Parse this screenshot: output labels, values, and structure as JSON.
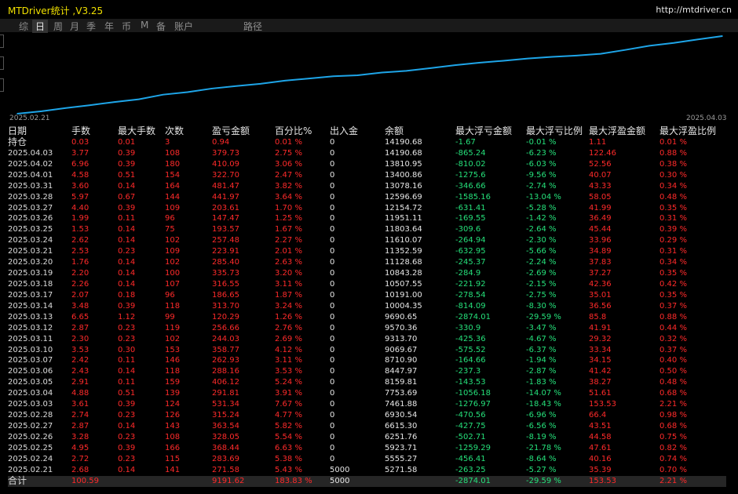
{
  "app": {
    "title": "MTDriver统计 ,V3.25",
    "url": "http://mtdriver.cn"
  },
  "tabs": [
    {
      "label": "综",
      "active": false
    },
    {
      "label": "日",
      "active": true
    },
    {
      "label": "周",
      "active": false
    },
    {
      "label": "月",
      "active": false
    },
    {
      "label": "季",
      "active": false
    },
    {
      "label": "年",
      "active": false
    },
    {
      "label": "币",
      "active": false
    },
    {
      "label": "M",
      "active": false
    },
    {
      "label": "备",
      "active": false
    },
    {
      "label": "账户",
      "active": false
    },
    {
      "label": "路径",
      "active": false
    }
  ],
  "chart_data": {
    "type": "line",
    "x": [
      "2025.02.21",
      "2025.02.24",
      "2025.02.25",
      "2025.02.26",
      "2025.02.27",
      "2025.02.28",
      "2025.03.03",
      "2025.03.04",
      "2025.03.05",
      "2025.03.06",
      "2025.03.07",
      "2025.03.10",
      "2025.03.11",
      "2025.03.12",
      "2025.03.13",
      "2025.03.14",
      "2025.03.17",
      "2025.03.18",
      "2025.03.19",
      "2025.03.20",
      "2025.03.21",
      "2025.03.24",
      "2025.03.25",
      "2025.03.26",
      "2025.03.27",
      "2025.03.28",
      "2025.03.31",
      "2025.04.01",
      "2025.04.02",
      "2025.04.03"
    ],
    "values": [
      5271.58,
      5555.27,
      5923.71,
      6251.76,
      6615.3,
      6930.54,
      7461.88,
      7753.69,
      8159.81,
      8447.97,
      8710.9,
      9069.67,
      9313.7,
      9570.36,
      9690.65,
      10004.35,
      10191.0,
      10507.55,
      10843.28,
      11128.68,
      11352.59,
      11610.07,
      11803.64,
      11951.11,
      12154.72,
      12596.69,
      13078.16,
      13400.86,
      13810.95,
      14190.68
    ],
    "xlabels": [
      "2025.02.21",
      "2025.04.03"
    ],
    "color": "#1ea5e8"
  },
  "table": {
    "headers": [
      "日期",
      "手数",
      "最大手数",
      "次数",
      "盈亏金额",
      "百分比%",
      "出入金",
      "余额",
      "最大浮亏金额",
      "最大浮亏比例",
      "最大浮盈金额",
      "最大浮盈比例"
    ],
    "rows": [
      [
        "持仓",
        "0.03",
        "0.01",
        "3",
        "0.94",
        "0.01 %",
        "0",
        "14190.68",
        "-1.67",
        "-0.01 %",
        "1.11",
        "0.01 %"
      ],
      [
        "2025.04.03",
        "3.77",
        "0.39",
        "108",
        "379.73",
        "2.75 %",
        "0",
        "14190.68",
        "-865.24",
        "-6.23 %",
        "122.46",
        "0.88 %"
      ],
      [
        "2025.04.02",
        "6.96",
        "0.39",
        "180",
        "410.09",
        "3.06 %",
        "0",
        "13810.95",
        "-810.02",
        "-6.03 %",
        "52.56",
        "0.38 %"
      ],
      [
        "2025.04.01",
        "4.58",
        "0.51",
        "154",
        "322.70",
        "2.47 %",
        "0",
        "13400.86",
        "-1275.6",
        "-9.56 %",
        "40.07",
        "0.30 %"
      ],
      [
        "2025.03.31",
        "3.60",
        "0.14",
        "164",
        "481.47",
        "3.82 %",
        "0",
        "13078.16",
        "-346.66",
        "-2.74 %",
        "43.33",
        "0.34 %"
      ],
      [
        "2025.03.28",
        "5.97",
        "0.67",
        "144",
        "441.97",
        "3.64 %",
        "0",
        "12596.69",
        "-1585.16",
        "-13.04 %",
        "58.05",
        "0.48 %"
      ],
      [
        "2025.03.27",
        "4.40",
        "0.39",
        "109",
        "203.61",
        "1.70 %",
        "0",
        "12154.72",
        "-631.41",
        "-5.28 %",
        "41.99",
        "0.35 %"
      ],
      [
        "2025.03.26",
        "1.99",
        "0.11",
        "96",
        "147.47",
        "1.25 %",
        "0",
        "11951.11",
        "-169.55",
        "-1.42 %",
        "36.49",
        "0.31 %"
      ],
      [
        "2025.03.25",
        "1.53",
        "0.14",
        "75",
        "193.57",
        "1.67 %",
        "0",
        "11803.64",
        "-309.6",
        "-2.64 %",
        "45.44",
        "0.39 %"
      ],
      [
        "2025.03.24",
        "2.62",
        "0.14",
        "102",
        "257.48",
        "2.27 %",
        "0",
        "11610.07",
        "-264.94",
        "-2.30 %",
        "33.96",
        "0.29 %"
      ],
      [
        "2025.03.21",
        "2.53",
        "0.23",
        "109",
        "223.91",
        "2.01 %",
        "0",
        "11352.59",
        "-632.95",
        "-5.66 %",
        "34.89",
        "0.31 %"
      ],
      [
        "2025.03.20",
        "1.76",
        "0.14",
        "102",
        "285.40",
        "2.63 %",
        "0",
        "11128.68",
        "-245.37",
        "-2.24 %",
        "37.83",
        "0.34 %"
      ],
      [
        "2025.03.19",
        "2.20",
        "0.14",
        "100",
        "335.73",
        "3.20 %",
        "0",
        "10843.28",
        "-284.9",
        "-2.69 %",
        "37.27",
        "0.35 %"
      ],
      [
        "2025.03.18",
        "2.26",
        "0.14",
        "107",
        "316.55",
        "3.11 %",
        "0",
        "10507.55",
        "-221.92",
        "-2.15 %",
        "42.36",
        "0.42 %"
      ],
      [
        "2025.03.17",
        "2.07",
        "0.18",
        "96",
        "186.65",
        "1.87 %",
        "0",
        "10191.00",
        "-278.54",
        "-2.75 %",
        "35.01",
        "0.35 %"
      ],
      [
        "2025.03.14",
        "3.48",
        "0.39",
        "118",
        "313.70",
        "3.24 %",
        "0",
        "10004.35",
        "-814.09",
        "-8.30 %",
        "36.56",
        "0.37 %"
      ],
      [
        "2025.03.13",
        "6.65",
        "1.12",
        "99",
        "120.29",
        "1.26 %",
        "0",
        "9690.65",
        "-2874.01",
        "-29.59 %",
        "85.8",
        "0.88 %"
      ],
      [
        "2025.03.12",
        "2.87",
        "0.23",
        "119",
        "256.66",
        "2.76 %",
        "0",
        "9570.36",
        "-330.9",
        "-3.47 %",
        "41.91",
        "0.44 %"
      ],
      [
        "2025.03.11",
        "2.30",
        "0.23",
        "102",
        "244.03",
        "2.69 %",
        "0",
        "9313.70",
        "-425.36",
        "-4.67 %",
        "29.32",
        "0.32 %"
      ],
      [
        "2025.03.10",
        "3.53",
        "0.30",
        "153",
        "358.77",
        "4.12 %",
        "0",
        "9069.67",
        "-575.52",
        "-6.37 %",
        "33.34",
        "0.37 %"
      ],
      [
        "2025.03.07",
        "2.42",
        "0.11",
        "146",
        "262.93",
        "3.11 %",
        "0",
        "8710.90",
        "-164.66",
        "-1.94 %",
        "34.15",
        "0.40 %"
      ],
      [
        "2025.03.06",
        "2.43",
        "0.14",
        "118",
        "288.16",
        "3.53 %",
        "0",
        "8447.97",
        "-237.3",
        "-2.87 %",
        "41.42",
        "0.50 %"
      ],
      [
        "2025.03.05",
        "2.91",
        "0.11",
        "159",
        "406.12",
        "5.24 %",
        "0",
        "8159.81",
        "-143.53",
        "-1.83 %",
        "38.27",
        "0.48 %"
      ],
      [
        "2025.03.04",
        "4.88",
        "0.51",
        "139",
        "291.81",
        "3.91 %",
        "0",
        "7753.69",
        "-1056.18",
        "-14.07 %",
        "51.61",
        "0.68 %"
      ],
      [
        "2025.03.03",
        "3.61",
        "0.39",
        "124",
        "531.34",
        "7.67 %",
        "0",
        "7461.88",
        "-1276.97",
        "-18.43 %",
        "153.53",
        "2.21 %"
      ],
      [
        "2025.02.28",
        "2.74",
        "0.23",
        "126",
        "315.24",
        "4.77 %",
        "0",
        "6930.54",
        "-470.56",
        "-6.96 %",
        "66.4",
        "0.98 %"
      ],
      [
        "2025.02.27",
        "2.87",
        "0.14",
        "143",
        "363.54",
        "5.82 %",
        "0",
        "6615.30",
        "-427.75",
        "-6.56 %",
        "43.51",
        "0.68 %"
      ],
      [
        "2025.02.26",
        "3.28",
        "0.23",
        "108",
        "328.05",
        "5.54 %",
        "0",
        "6251.76",
        "-502.71",
        "-8.19 %",
        "44.58",
        "0.75 %"
      ],
      [
        "2025.02.25",
        "4.95",
        "0.39",
        "166",
        "368.44",
        "6.63 %",
        "0",
        "5923.71",
        "-1259.29",
        "-21.78 %",
        "47.61",
        "0.82 %"
      ],
      [
        "2025.02.24",
        "2.72",
        "0.23",
        "115",
        "283.69",
        "5.38 %",
        "0",
        "5555.27",
        "-456.41",
        "-8.64 %",
        "40.16",
        "0.74 %"
      ],
      [
        "2025.02.21",
        "2.68",
        "0.14",
        "141",
        "271.58",
        "5.43 %",
        "5000",
        "5271.58",
        "-263.25",
        "-5.27 %",
        "35.39",
        "0.70 %"
      ]
    ],
    "total": [
      "合计",
      "100.59",
      "",
      "",
      "9191.62",
      "183.83 %",
      "5000",
      "",
      "-2874.01",
      "-29.59 %",
      "153.53",
      "2.21 %"
    ]
  }
}
